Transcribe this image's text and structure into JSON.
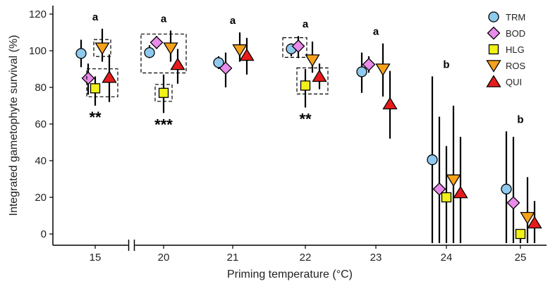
{
  "chart_data": {
    "type": "scatter",
    "xlabel": "Priming temperature (°C)",
    "ylabel": "Integrated gametophyte survival (%)",
    "ylim": [
      -5,
      122
    ],
    "yticks": [
      0,
      20,
      40,
      60,
      80,
      100,
      120
    ],
    "categories": [
      "15",
      "20",
      "21",
      "22",
      "23",
      "24",
      "25"
    ],
    "axis_break_between": [
      "15",
      "20"
    ],
    "legend_position": "top-right",
    "series": [
      {
        "name": "TRM",
        "marker": "circle",
        "color": "#8ec9ee",
        "values": [
          98.5,
          99,
          93.5,
          101,
          88.5,
          40.5,
          24.5
        ],
        "err_low": [
          91,
          96,
          90,
          97,
          77,
          -5,
          -5
        ],
        "err_high": [
          106,
          103,
          97,
          104,
          99,
          86,
          56
        ]
      },
      {
        "name": "BOD",
        "marker": "diamond",
        "color": "#e98bea",
        "values": [
          85,
          104.5,
          90.5,
          102.5,
          92.5,
          24.5,
          17
        ],
        "err_low": [
          76,
          101,
          80,
          96,
          88,
          -5,
          -5
        ],
        "err_high": [
          93,
          108,
          99,
          108,
          97,
          64,
          53
        ]
      },
      {
        "name": "HLG",
        "marker": "square",
        "color": "#f2f21a",
        "values": [
          79.5,
          77,
          null,
          81,
          null,
          20,
          0
        ],
        "err_low": [
          70,
          66,
          null,
          69,
          null,
          -5,
          -5
        ],
        "err_high": [
          86,
          87,
          null,
          90,
          null,
          48,
          2
        ]
      },
      {
        "name": "ROS",
        "marker": "triangle-down",
        "color": "#f7a21b",
        "values": [
          101.5,
          101.5,
          100.5,
          95,
          90,
          29.5,
          9
        ],
        "err_low": [
          94,
          94,
          94,
          88,
          75,
          -5,
          -5
        ],
        "err_high": [
          112,
          111,
          110,
          105,
          104,
          70,
          31
        ]
      },
      {
        "name": "QUI",
        "marker": "triangle-up",
        "color": "#e61c1c",
        "values": [
          85.5,
          92.5,
          97.5,
          86,
          71,
          22.5,
          6
        ],
        "err_low": [
          72,
          82,
          87,
          79,
          52,
          -5,
          -5
        ],
        "err_high": [
          98,
          101,
          107,
          93,
          89,
          53,
          18
        ]
      }
    ],
    "significance_letters": [
      {
        "category": "15",
        "label": "a"
      },
      {
        "category": "20",
        "label": "a"
      },
      {
        "category": "21",
        "label": "a"
      },
      {
        "category": "22",
        "label": "a"
      },
      {
        "category": "23",
        "label": "a"
      },
      {
        "category": "24",
        "label": "b"
      },
      {
        "category": "25",
        "label": "b"
      }
    ],
    "significance_stars": [
      {
        "category": "15",
        "label": "**"
      },
      {
        "category": "20",
        "label": "***"
      },
      {
        "category": "22",
        "label": "**"
      }
    ],
    "highlight_boxes": [
      {
        "category": "15",
        "series": [
          "ROS"
        ]
      },
      {
        "category": "15",
        "series": [
          "HLG",
          "QUI"
        ]
      },
      {
        "category": "20",
        "series": [
          "TRM",
          "BOD",
          "ROS",
          "QUI"
        ]
      },
      {
        "category": "20",
        "series": [
          "HLG"
        ]
      },
      {
        "category": "22",
        "series": [
          "TRM",
          "BOD"
        ]
      },
      {
        "category": "22",
        "series": [
          "HLG",
          "QUI"
        ]
      }
    ]
  }
}
